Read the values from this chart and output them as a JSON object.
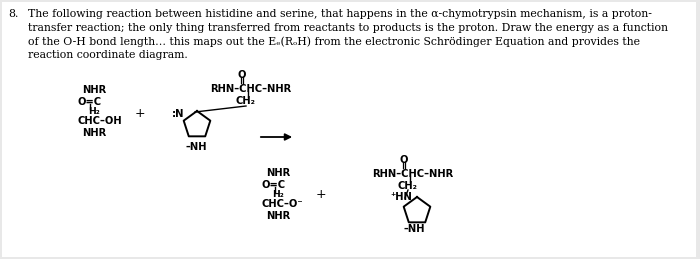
{
  "bg_color": "#e8e8e8",
  "page_bg": "#ffffff",
  "text_color": "#1a1a1a",
  "fig_width": 7.0,
  "fig_height": 2.59,
  "dpi": 100,
  "lines": [
    "The following reaction between histidine and serine, that happens in the α-chymotrypsin mechanism, is a proton-",
    "transfer reaction; the only thing transferred from reactants to products is the proton. Draw the energy as a function",
    "of the O-H bond length… this maps out the Eₑ(RₒH) from the electronic Schrödinger Equation and provides the",
    "reaction coordinate diagram."
  ],
  "chem_fs": 7.2,
  "text_fs": 7.8
}
